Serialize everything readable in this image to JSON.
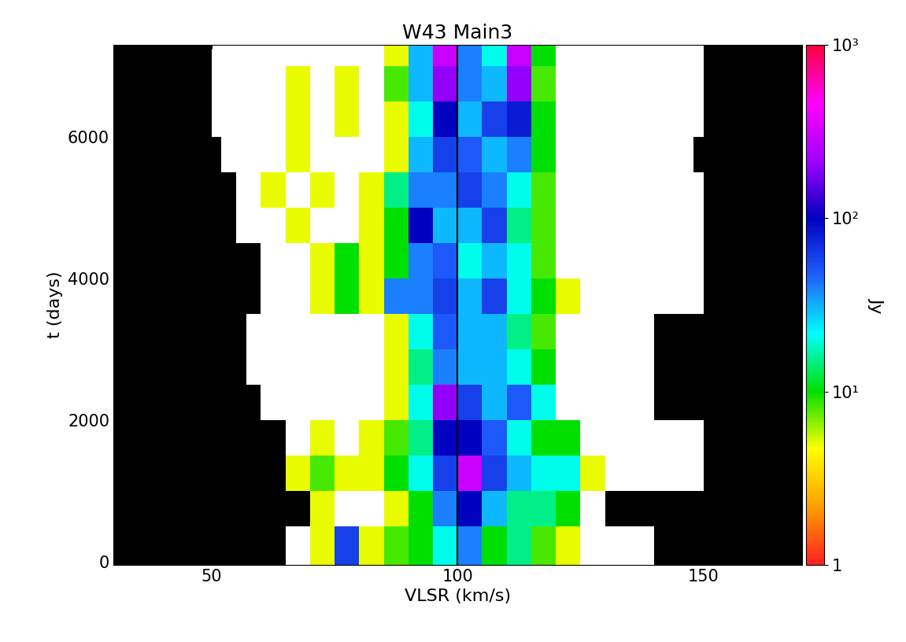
{
  "chart_data": {
    "type": "heatmap",
    "title": "W43 Main3",
    "x_label": "VLSR (km/s)",
    "y_label": "t (days)",
    "xlim": [
      30,
      170
    ],
    "xticks": [
      50,
      100,
      150
    ],
    "ylim": [
      -50,
      7300
    ],
    "yticks": [
      0,
      2000,
      4000,
      6000
    ],
    "log": true,
    "v_edges": [
      60,
      65,
      70,
      75,
      80,
      85,
      90,
      95,
      100,
      105,
      110,
      115,
      120,
      125,
      130,
      135,
      140
    ],
    "t_edges": [
      -50,
      500,
      1000,
      1500,
      2000,
      2500,
      3000,
      3500,
      4000,
      4500,
      5000,
      5500,
      6000,
      6500,
      7000,
      7300
    ],
    "coverage": [
      [
        65,
        140
      ],
      [
        70,
        130
      ],
      [
        70,
        150
      ],
      [
        65,
        150
      ],
      [
        60,
        140
      ],
      [
        57,
        140
      ],
      [
        57,
        140
      ],
      [
        60,
        150
      ],
      [
        60,
        150
      ],
      [
        55,
        150
      ],
      [
        55,
        150
      ],
      [
        52,
        148
      ],
      [
        50,
        150
      ],
      [
        50,
        150
      ],
      [
        50,
        150
      ]
    ],
    "cells": [
      [
        null,
        null,
        5,
        60,
        5,
        8,
        10,
        20,
        40,
        10,
        15,
        8,
        5,
        null,
        null,
        null
      ],
      [
        null,
        null,
        5,
        null,
        null,
        5,
        10,
        40,
        100,
        30,
        15,
        15,
        10,
        null,
        null,
        null
      ],
      [
        null,
        5,
        8,
        5,
        5,
        10,
        20,
        60,
        300,
        60,
        30,
        20,
        20,
        5,
        null,
        null
      ],
      [
        null,
        null,
        5,
        null,
        5,
        8,
        15,
        100,
        100,
        50,
        20,
        10,
        10,
        null,
        null,
        null
      ],
      [
        null,
        null,
        null,
        null,
        null,
        5,
        20,
        200,
        60,
        30,
        50,
        20,
        null,
        null,
        null,
        null
      ],
      [
        null,
        null,
        null,
        null,
        null,
        5,
        15,
        40,
        30,
        30,
        20,
        10,
        null,
        null,
        null,
        null
      ],
      [
        null,
        null,
        null,
        null,
        null,
        5,
        20,
        50,
        30,
        30,
        15,
        8,
        null,
        null,
        null,
        null
      ],
      [
        null,
        null,
        5,
        10,
        5,
        40,
        40,
        60,
        30,
        60,
        20,
        10,
        5,
        null,
        null,
        null
      ],
      [
        null,
        null,
        5,
        10,
        5,
        10,
        40,
        50,
        20,
        30,
        20,
        8,
        null,
        null,
        null,
        null
      ],
      [
        null,
        5,
        null,
        null,
        5,
        10,
        100,
        30,
        30,
        60,
        15,
        8,
        null,
        null,
        null,
        null
      ],
      [
        5,
        null,
        5,
        null,
        5,
        15,
        40,
        40,
        60,
        40,
        20,
        8,
        null,
        null,
        null,
        null
      ],
      [
        null,
        5,
        null,
        null,
        null,
        5,
        30,
        60,
        50,
        30,
        40,
        10,
        null,
        null,
        null,
        null
      ],
      [
        null,
        5,
        null,
        5,
        null,
        5,
        20,
        100,
        30,
        60,
        80,
        10,
        null,
        null,
        null,
        null
      ],
      [
        null,
        5,
        null,
        5,
        null,
        8,
        30,
        200,
        40,
        30,
        200,
        8,
        null,
        null,
        null,
        null
      ],
      [
        null,
        null,
        null,
        null,
        null,
        5,
        30,
        300,
        40,
        20,
        300,
        10,
        null,
        null,
        null,
        null
      ]
    ],
    "vline": 100,
    "colorbar_label": "Jy",
    "colorbar_range": [
      1,
      1000
    ],
    "colorbar_ticks": [
      1,
      {
        "value": 10,
        "label": "10¹"
      },
      {
        "value": 100,
        "label": "10²"
      },
      {
        "value": 1000,
        "label": "10³"
      }
    ]
  }
}
